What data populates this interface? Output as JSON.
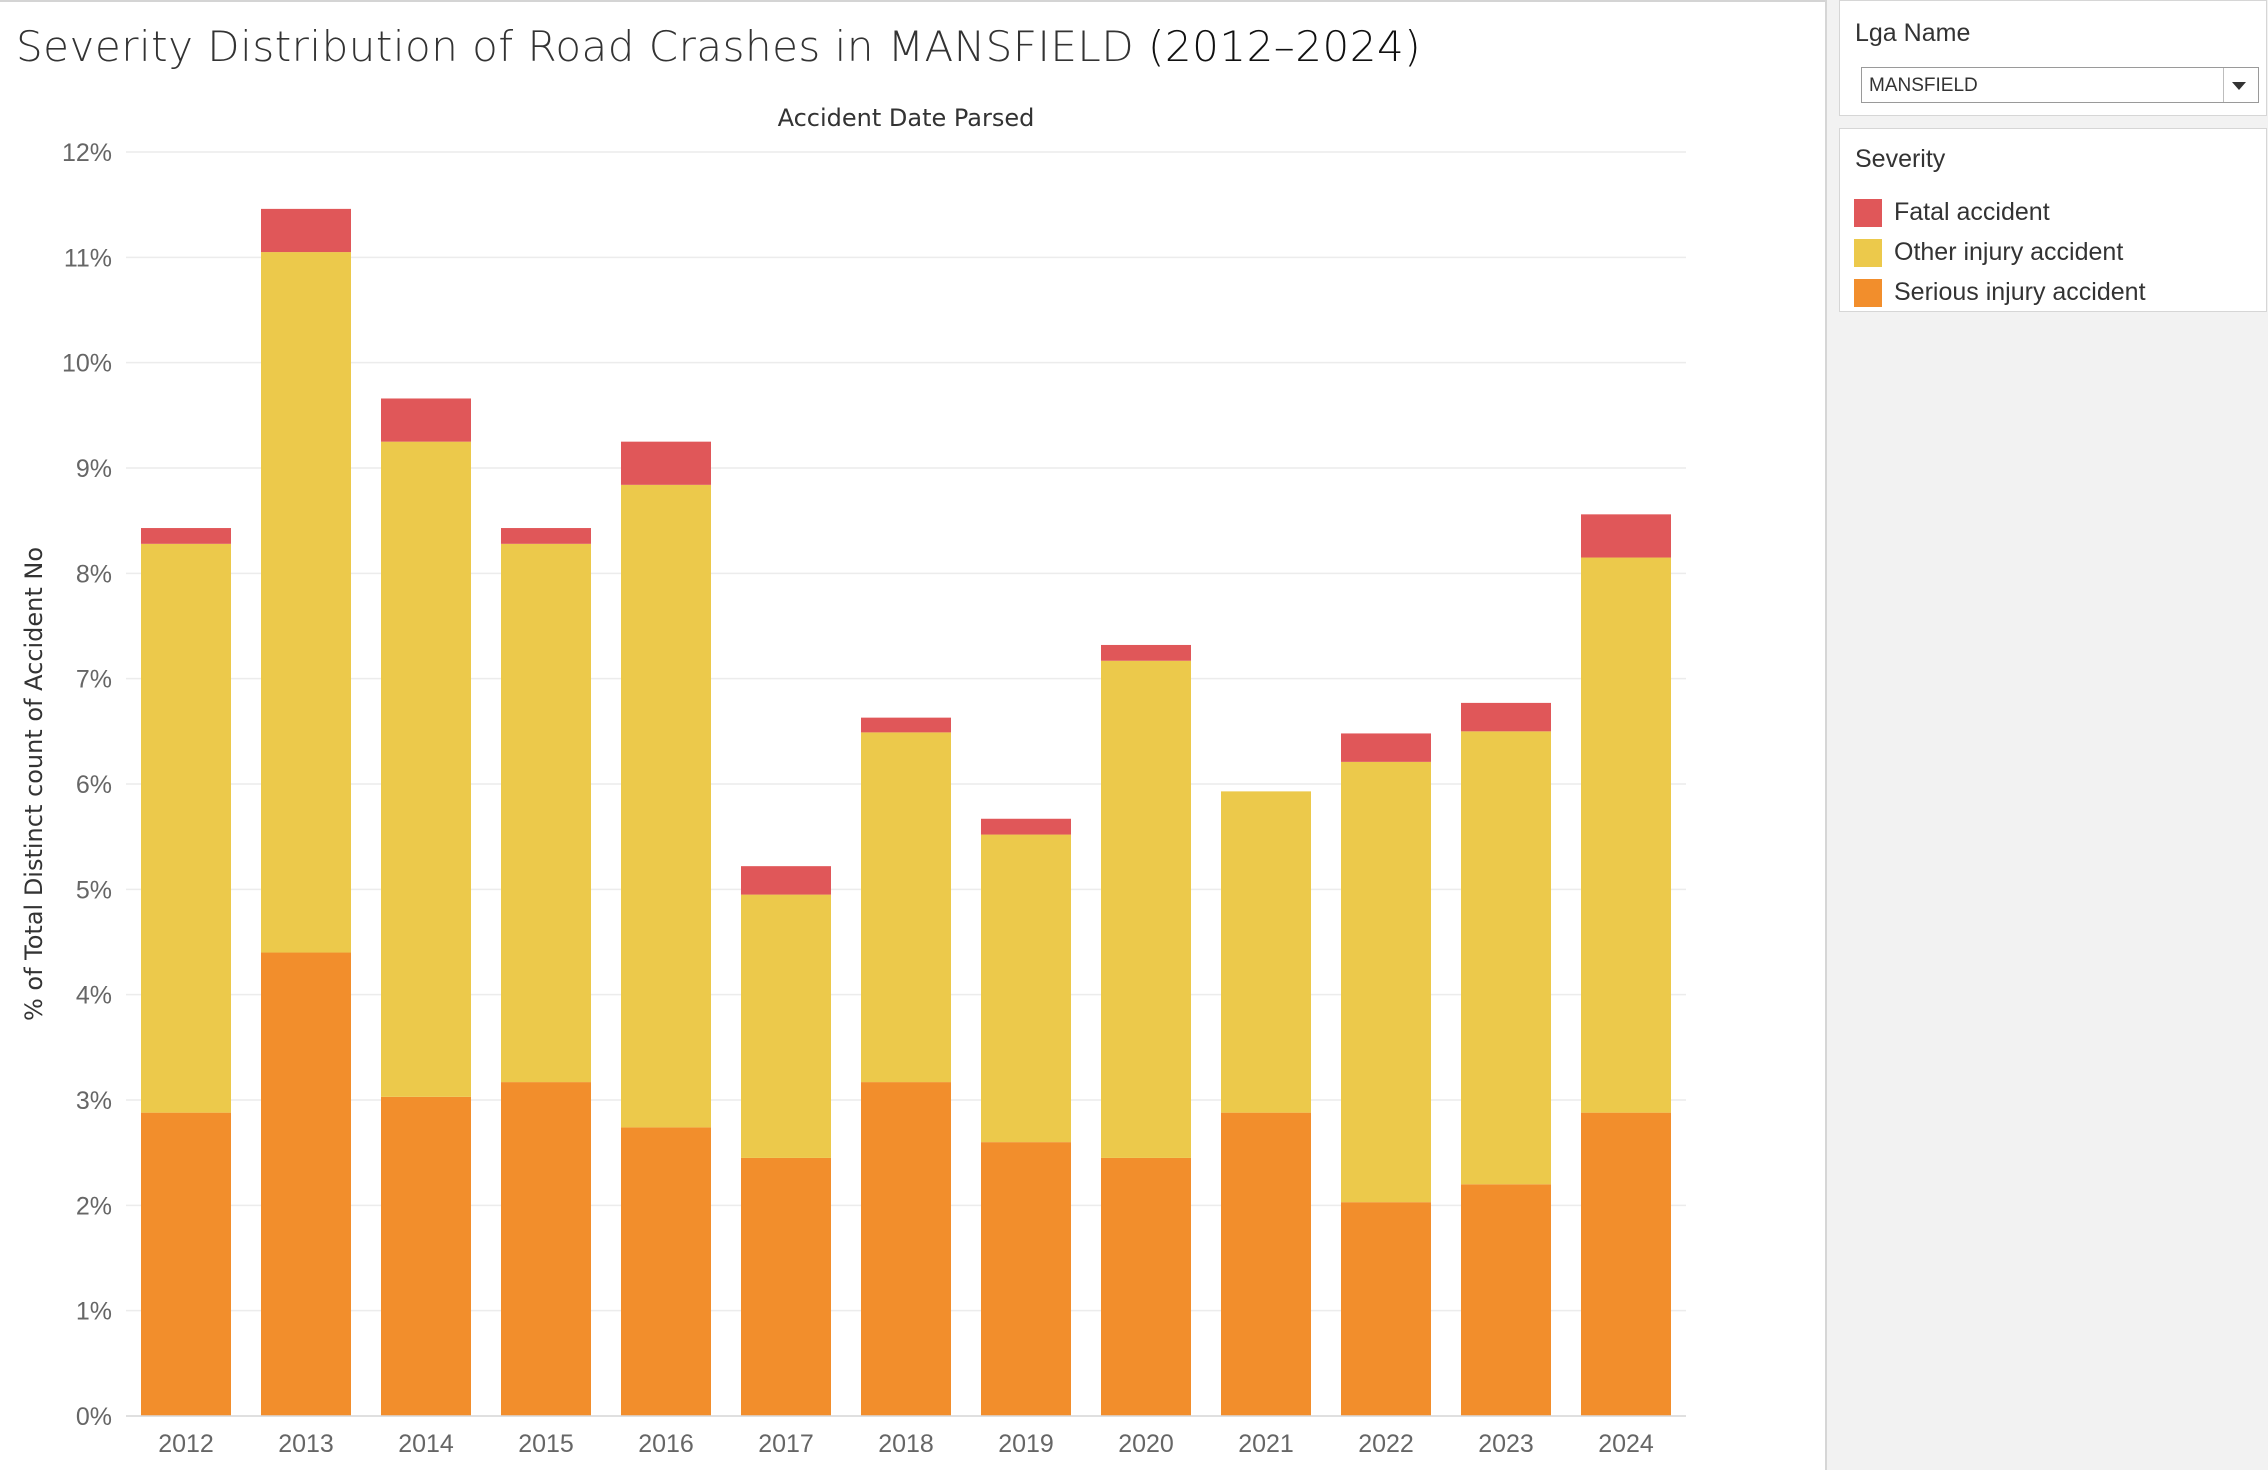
{
  "page": {
    "title_prefix": "Severity Distribution of Road Crashes in MANSFIELD ",
    "title_dates": "(2012–2024)"
  },
  "filter": {
    "title": "Lga Name",
    "selected": "MANSFIELD"
  },
  "legend": {
    "title": "Severity",
    "items": [
      {
        "label": "Fatal accident",
        "color": "#e05759"
      },
      {
        "label": "Other injury accident",
        "color": "#ecc94b"
      },
      {
        "label": "Serious injury accident",
        "color": "#f28e2c"
      }
    ]
  },
  "chart_data": {
    "type": "bar",
    "stacked": true,
    "title": "Severity Distribution of Road Crashes in MANSFIELD (2012–2024)",
    "top_axis_title": "Accident Date Parsed",
    "xlabel": "",
    "ylabel": "% of Total Distinct count of Accident No",
    "ylim": [
      0,
      12
    ],
    "y_ticks": [
      0,
      1,
      2,
      3,
      4,
      5,
      6,
      7,
      8,
      9,
      10,
      11,
      12
    ],
    "y_tick_suffix": "%",
    "grid": true,
    "legend_position": "right",
    "categories": [
      "2012",
      "2013",
      "2014",
      "2015",
      "2016",
      "2017",
      "2018",
      "2019",
      "2020",
      "2021",
      "2022",
      "2023",
      "2024"
    ],
    "series": [
      {
        "name": "Serious injury accident",
        "color": "#f28e2c",
        "values": [
          2.88,
          4.4,
          3.03,
          3.17,
          2.74,
          2.45,
          3.17,
          2.6,
          2.45,
          2.88,
          2.03,
          2.2,
          2.88
        ]
      },
      {
        "name": "Other injury accident",
        "color": "#ecc94b",
        "values": [
          5.4,
          6.65,
          6.22,
          5.11,
          6.1,
          2.5,
          3.32,
          2.92,
          4.72,
          3.05,
          4.18,
          4.3,
          5.27
        ]
      },
      {
        "name": "Fatal accident",
        "color": "#e05759",
        "values": [
          0.15,
          0.41,
          0.41,
          0.15,
          0.41,
          0.27,
          0.14,
          0.15,
          0.15,
          0.0,
          0.27,
          0.27,
          0.41
        ]
      }
    ]
  }
}
